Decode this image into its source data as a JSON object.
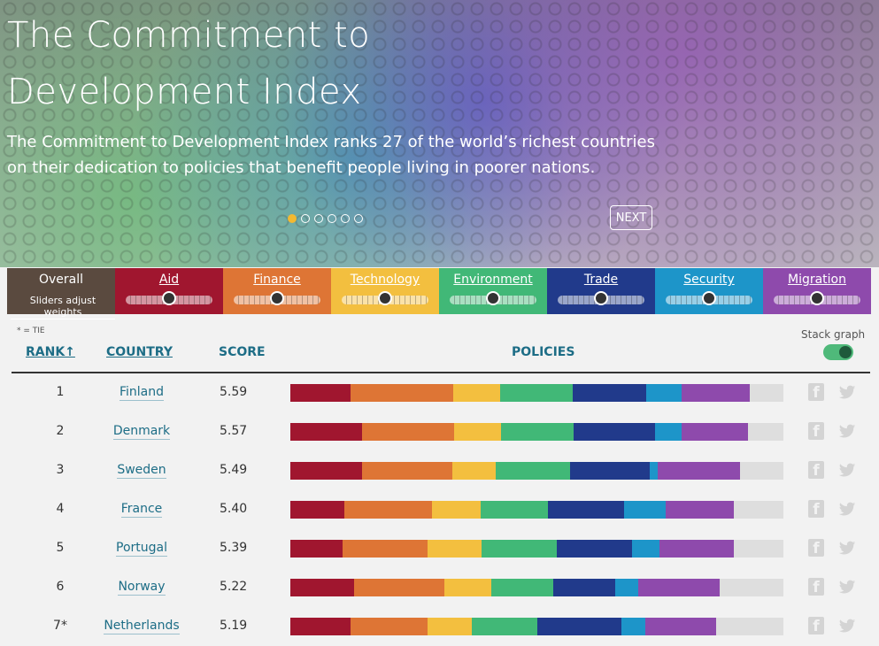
{
  "hero": {
    "title": "The Commitment to Development Index",
    "subtitle": "The Commitment to Development Index ranks 27 of the world’s richest countries on their dedication to policies that benefit people living in poorer nations.",
    "next_label": "NEXT",
    "slides_count": 6,
    "active_slide": 1
  },
  "tabs": [
    {
      "label": "Overall",
      "hint": "Sliders adjust weights",
      "color": "#5a4a3f"
    },
    {
      "label": "Aid",
      "color": "#a0162f",
      "slider_fraction": 0.5
    },
    {
      "label": "Finance",
      "color": "#de7535",
      "slider_fraction": 0.5
    },
    {
      "label": "Technology",
      "color": "#f3bf3f",
      "slider_fraction": 0.5
    },
    {
      "label": "Environment",
      "color": "#41b877",
      "slider_fraction": 0.5
    },
    {
      "label": "Trade",
      "color": "#213a8b",
      "slider_fraction": 0.5
    },
    {
      "label": "Security",
      "color": "#1d95c9",
      "slider_fraction": 0.5
    },
    {
      "label": "Migration",
      "color": "#8e4aac",
      "slider_fraction": 0.5
    }
  ],
  "table": {
    "tie_note": "* = TIE",
    "stack_label": "Stack graph",
    "stack_on": true,
    "headers": {
      "rank": "RANK↑",
      "country": "COUNTRY",
      "score": "SCORE",
      "policies": "POLICIES"
    },
    "segment_colors": [
      "#a0162f",
      "#de7535",
      "#f3bf3f",
      "#41b877",
      "#213a8b",
      "#1d95c9",
      "#8e4aac"
    ],
    "rows": [
      {
        "rank": "1",
        "country": "Finland",
        "score": "5.59",
        "policies": [
          0.122,
          0.208,
          0.096,
          0.146,
          0.15,
          0.072,
          0.138
        ]
      },
      {
        "rank": "2",
        "country": "Denmark",
        "score": "5.57",
        "policies": [
          0.145,
          0.188,
          0.095,
          0.147,
          0.165,
          0.054,
          0.134
        ]
      },
      {
        "rank": "3",
        "country": "Sweden",
        "score": "5.49",
        "policies": [
          0.145,
          0.183,
          0.088,
          0.151,
          0.162,
          0.016,
          0.167
        ]
      },
      {
        "rank": "4",
        "country": "France",
        "score": "5.40",
        "policies": [
          0.11,
          0.178,
          0.098,
          0.137,
          0.154,
          0.084,
          0.138
        ]
      },
      {
        "rank": "5",
        "country": "Portugal",
        "score": "5.39",
        "policies": [
          0.106,
          0.172,
          0.11,
          0.152,
          0.153,
          0.056,
          0.151
        ]
      },
      {
        "rank": "6",
        "country": "Norway",
        "score": "5.22",
        "policies": [
          0.129,
          0.183,
          0.095,
          0.127,
          0.124,
          0.048,
          0.164
        ]
      },
      {
        "rank": "7*",
        "country": "Netherlands",
        "score": "5.19",
        "policies": [
          0.122,
          0.156,
          0.09,
          0.133,
          0.171,
          0.048,
          0.144
        ]
      }
    ]
  }
}
